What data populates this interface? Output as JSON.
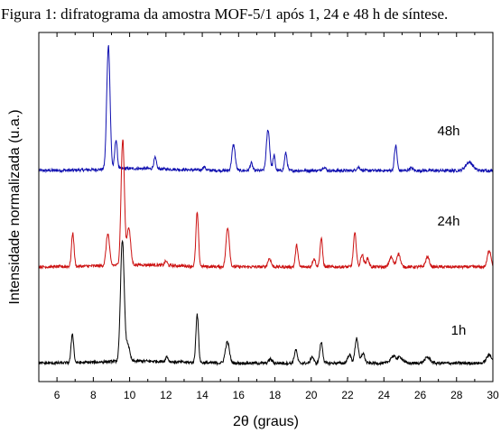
{
  "caption": "Figura 1: difratograma da amostra MOF-5/1 após 1, 24 e 48 h de síntese.",
  "chart_data": {
    "type": "line",
    "title": "",
    "xlabel": "2θ (graus)",
    "ylabel": "Intensidade normalizada (u.a.)",
    "xlim": [
      5,
      30
    ],
    "x_ticks": [
      6,
      8,
      10,
      12,
      14,
      16,
      18,
      20,
      22,
      24,
      26,
      28,
      30
    ],
    "y_ticks": [],
    "grid": false,
    "legend": "none",
    "series": [
      {
        "name": "48h",
        "color": "#1010b0",
        "offset": 2.3,
        "peaks": [
          [
            8.83,
            1.48,
            0.09
          ],
          [
            9.25,
            0.35,
            0.07
          ],
          [
            11.4,
            0.13,
            0.07
          ],
          [
            14.1,
            0.04,
            0.08
          ],
          [
            15.72,
            0.31,
            0.09
          ],
          [
            16.7,
            0.09,
            0.07
          ],
          [
            17.62,
            0.49,
            0.09
          ],
          [
            17.95,
            0.18,
            0.06
          ],
          [
            18.6,
            0.21,
            0.07
          ],
          [
            20.7,
            0.04,
            0.1
          ],
          [
            22.6,
            0.04,
            0.1
          ],
          [
            24.65,
            0.3,
            0.07
          ],
          [
            25.5,
            0.03,
            0.1
          ],
          [
            28.7,
            0.1,
            0.2
          ]
        ]
      },
      {
        "name": "24h",
        "color": "#cc1111",
        "offset": 1.15,
        "peaks": [
          [
            6.87,
            0.4,
            0.07
          ],
          [
            8.8,
            0.38,
            0.09
          ],
          [
            9.62,
            1.5,
            0.09
          ],
          [
            9.95,
            0.45,
            0.1
          ],
          [
            12.0,
            0.05,
            0.07
          ],
          [
            13.72,
            0.64,
            0.07
          ],
          [
            15.4,
            0.47,
            0.09
          ],
          [
            17.7,
            0.1,
            0.09
          ],
          [
            19.2,
            0.26,
            0.07
          ],
          [
            20.15,
            0.1,
            0.08
          ],
          [
            20.55,
            0.34,
            0.07
          ],
          [
            22.4,
            0.4,
            0.08
          ],
          [
            22.8,
            0.15,
            0.08
          ],
          [
            23.1,
            0.1,
            0.08
          ],
          [
            24.4,
            0.12,
            0.1
          ],
          [
            24.8,
            0.16,
            0.1
          ],
          [
            26.4,
            0.12,
            0.1
          ],
          [
            29.8,
            0.2,
            0.1
          ]
        ]
      },
      {
        "name": "1h",
        "color": "#000000",
        "offset": 0.0,
        "peaks": [
          [
            6.85,
            0.35,
            0.07
          ],
          [
            9.6,
            1.45,
            0.1
          ],
          [
            9.9,
            0.2,
            0.1
          ],
          [
            12.05,
            0.06,
            0.07
          ],
          [
            13.72,
            0.58,
            0.07
          ],
          [
            15.38,
            0.25,
            0.11
          ],
          [
            17.75,
            0.05,
            0.09
          ],
          [
            19.15,
            0.16,
            0.08
          ],
          [
            20.05,
            0.08,
            0.08
          ],
          [
            20.55,
            0.25,
            0.08
          ],
          [
            22.1,
            0.1,
            0.1
          ],
          [
            22.5,
            0.3,
            0.09
          ],
          [
            22.85,
            0.12,
            0.09
          ],
          [
            24.5,
            0.08,
            0.15
          ],
          [
            24.9,
            0.07,
            0.15
          ],
          [
            26.4,
            0.07,
            0.15
          ],
          [
            29.8,
            0.1,
            0.15
          ]
        ]
      }
    ]
  }
}
